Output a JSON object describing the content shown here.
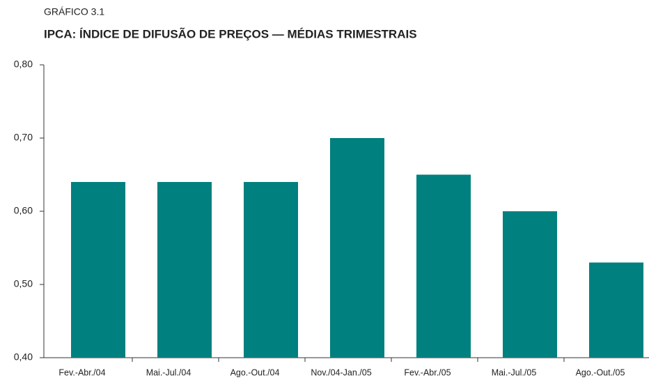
{
  "chart_data": {
    "type": "bar",
    "subtitle": "GRÁFICO 3.1",
    "title": "IPCA: ÍNDICE DE DIFUSÃO DE PREÇOS — MÉDIAS TRIMESTRAIS",
    "categories": [
      "Fev.-Abr./04",
      "Mai.-Jul./04",
      "Ago.-Out./04",
      "Nov./04-Jan./05",
      "Fev.-Abr./05",
      "Mai.-Jul./05",
      "Ago.-Out./05"
    ],
    "values": [
      0.64,
      0.64,
      0.64,
      0.7,
      0.65,
      0.6,
      0.53
    ],
    "color": "#00807f",
    "ylim": [
      0.4,
      0.8
    ],
    "yticks": [
      {
        "value": 0.4,
        "label": "0,40"
      },
      {
        "value": 0.5,
        "label": "0,50"
      },
      {
        "value": 0.6,
        "label": "0,60"
      },
      {
        "value": 0.7,
        "label": "0,70"
      },
      {
        "value": 0.8,
        "label": "0,80"
      }
    ],
    "grid": false
  }
}
